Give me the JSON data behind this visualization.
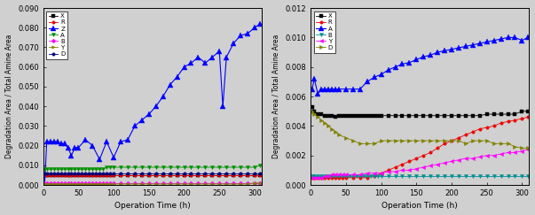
{
  "fig_width": 6.03,
  "fig_height": 2.43,
  "fig_dpi": 100,
  "bg_color": "#d0d0d0",
  "left": {
    "ylabel": "Degradation Area / Total Amine Area",
    "xlabel": "Operation Time (h)",
    "ylim": [
      0,
      0.09
    ],
    "xlim": [
      0,
      310
    ],
    "xticks": [
      0,
      50,
      100,
      150,
      200,
      250,
      300
    ],
    "yticks": [
      0,
      0.01,
      0.02,
      0.03,
      0.04,
      0.05,
      0.06,
      0.07,
      0.08,
      0.09
    ],
    "series": [
      {
        "name": "X",
        "color": "#000000",
        "marker": "s",
        "ms": 2.5,
        "lw": 0.6,
        "x": [
          2,
          5,
          10,
          15,
          20,
          25,
          30,
          35,
          40,
          45,
          50,
          55,
          60,
          65,
          70,
          75,
          80,
          85,
          90,
          95,
          100,
          110,
          120,
          130,
          140,
          150,
          160,
          170,
          180,
          190,
          200,
          210,
          220,
          230,
          240,
          250,
          260,
          270,
          280,
          290,
          300,
          308
        ],
        "y": [
          0.005,
          0.005,
          0.005,
          0.005,
          0.005,
          0.005,
          0.005,
          0.005,
          0.005,
          0.005,
          0.005,
          0.005,
          0.005,
          0.005,
          0.005,
          0.005,
          0.005,
          0.005,
          0.005,
          0.005,
          0.005,
          0.005,
          0.005,
          0.005,
          0.005,
          0.005,
          0.005,
          0.005,
          0.005,
          0.005,
          0.005,
          0.005,
          0.005,
          0.005,
          0.005,
          0.005,
          0.005,
          0.005,
          0.005,
          0.005,
          0.005,
          0.005
        ]
      },
      {
        "name": "R",
        "color": "#ee0000",
        "marker": "o",
        "ms": 2.5,
        "lw": 0.6,
        "x": [
          2,
          5,
          10,
          15,
          20,
          25,
          30,
          35,
          40,
          45,
          50,
          55,
          60,
          65,
          70,
          75,
          80,
          85,
          90,
          95,
          100,
          110,
          120,
          130,
          140,
          150,
          160,
          170,
          180,
          190,
          200,
          210,
          220,
          230,
          240,
          250,
          260,
          270,
          280,
          290,
          300,
          308
        ],
        "y": [
          0.005,
          0.005,
          0.005,
          0.005,
          0.005,
          0.005,
          0.005,
          0.005,
          0.005,
          0.005,
          0.005,
          0.005,
          0.005,
          0.005,
          0.005,
          0.005,
          0.005,
          0.005,
          0.005,
          0.005,
          0.005,
          0.005,
          0.005,
          0.005,
          0.005,
          0.005,
          0.005,
          0.005,
          0.005,
          0.005,
          0.005,
          0.005,
          0.005,
          0.005,
          0.005,
          0.005,
          0.005,
          0.005,
          0.005,
          0.005,
          0.005,
          0.005
        ]
      },
      {
        "name": "Z",
        "color": "#0000ff",
        "marker": "^",
        "ms": 4,
        "lw": 0.8,
        "x": [
          2,
          5,
          10,
          15,
          20,
          25,
          30,
          35,
          40,
          45,
          50,
          60,
          70,
          80,
          90,
          100,
          110,
          120,
          130,
          140,
          150,
          160,
          170,
          180,
          190,
          200,
          210,
          220,
          230,
          240,
          250,
          255,
          260,
          270,
          280,
          290,
          300,
          308
        ],
        "y": [
          0.0,
          0.022,
          0.022,
          0.022,
          0.022,
          0.021,
          0.021,
          0.019,
          0.015,
          0.019,
          0.019,
          0.023,
          0.02,
          0.013,
          0.022,
          0.014,
          0.022,
          0.023,
          0.03,
          0.033,
          0.036,
          0.04,
          0.045,
          0.051,
          0.055,
          0.06,
          0.062,
          0.065,
          0.062,
          0.065,
          0.068,
          0.04,
          0.065,
          0.072,
          0.076,
          0.077,
          0.08,
          0.082
        ]
      },
      {
        "name": "A",
        "color": "#009000",
        "marker": "v",
        "ms": 3,
        "lw": 0.6,
        "x": [
          2,
          5,
          10,
          15,
          20,
          25,
          30,
          35,
          40,
          45,
          50,
          55,
          60,
          65,
          70,
          75,
          80,
          85,
          90,
          95,
          100,
          110,
          120,
          130,
          140,
          150,
          160,
          170,
          180,
          190,
          200,
          210,
          220,
          230,
          240,
          250,
          260,
          270,
          280,
          290,
          300,
          308
        ],
        "y": [
          0.008,
          0.008,
          0.008,
          0.008,
          0.008,
          0.008,
          0.008,
          0.008,
          0.008,
          0.008,
          0.008,
          0.008,
          0.008,
          0.008,
          0.008,
          0.008,
          0.008,
          0.008,
          0.009,
          0.009,
          0.009,
          0.009,
          0.009,
          0.009,
          0.009,
          0.009,
          0.009,
          0.009,
          0.009,
          0.009,
          0.009,
          0.009,
          0.009,
          0.009,
          0.009,
          0.009,
          0.009,
          0.009,
          0.009,
          0.009,
          0.009,
          0.01
        ]
      },
      {
        "name": "B",
        "color": "#ff00ff",
        "marker": "D",
        "ms": 2.5,
        "lw": 0.6,
        "x": [
          2,
          5,
          10,
          15,
          20,
          25,
          30,
          35,
          40,
          45,
          50,
          55,
          60,
          65,
          70,
          75,
          80,
          85,
          90,
          95,
          100,
          110,
          120,
          130,
          140,
          150,
          160,
          170,
          180,
          190,
          200,
          210,
          220,
          230,
          240,
          250,
          260,
          270,
          280,
          290,
          300,
          308
        ],
        "y": [
          0.001,
          0.001,
          0.001,
          0.001,
          0.001,
          0.001,
          0.001,
          0.001,
          0.001,
          0.001,
          0.001,
          0.001,
          0.001,
          0.001,
          0.001,
          0.001,
          0.001,
          0.001,
          0.001,
          0.001,
          0.001,
          0.001,
          0.001,
          0.001,
          0.001,
          0.001,
          0.001,
          0.001,
          0.001,
          0.001,
          0.001,
          0.001,
          0.001,
          0.001,
          0.001,
          0.001,
          0.001,
          0.001,
          0.001,
          0.001,
          0.001,
          0.001
        ]
      },
      {
        "name": "Y",
        "color": "#808000",
        "marker": ">",
        "ms": 2.5,
        "lw": 0.6,
        "x": [
          2,
          5,
          10,
          15,
          20,
          25,
          30,
          35,
          40,
          45,
          50,
          55,
          60,
          65,
          70,
          75,
          80,
          85,
          90,
          95,
          100,
          110,
          120,
          130,
          140,
          150,
          160,
          170,
          180,
          190,
          200,
          210,
          220,
          230,
          240,
          250,
          260,
          270,
          280,
          290,
          300,
          308
        ],
        "y": [
          0.0005,
          0.0005,
          0.0005,
          0.0005,
          0.0005,
          0.0005,
          0.0005,
          0.0005,
          0.0005,
          0.0005,
          0.0005,
          0.0005,
          0.0005,
          0.0005,
          0.0005,
          0.0005,
          0.0005,
          0.0005,
          0.0005,
          0.0005,
          0.0005,
          0.0005,
          0.0005,
          0.0005,
          0.0005,
          0.0005,
          0.0005,
          0.0005,
          0.0005,
          0.0005,
          0.0005,
          0.0005,
          0.0005,
          0.0005,
          0.0005,
          0.0005,
          0.0005,
          0.0005,
          0.0005,
          0.0005,
          0.001,
          0.001
        ]
      },
      {
        "name": "D",
        "color": "#000080",
        "marker": "o",
        "ms": 2.5,
        "lw": 0.6,
        "x": [
          2,
          5,
          10,
          15,
          20,
          25,
          30,
          35,
          40,
          45,
          50,
          55,
          60,
          65,
          70,
          75,
          80,
          85,
          90,
          95,
          100,
          110,
          120,
          130,
          140,
          150,
          160,
          170,
          180,
          190,
          200,
          210,
          220,
          230,
          240,
          250,
          260,
          270,
          280,
          290,
          300,
          308
        ],
        "y": [
          0.006,
          0.006,
          0.006,
          0.006,
          0.006,
          0.006,
          0.006,
          0.006,
          0.006,
          0.006,
          0.006,
          0.006,
          0.006,
          0.006,
          0.006,
          0.006,
          0.006,
          0.006,
          0.006,
          0.006,
          0.006,
          0.006,
          0.006,
          0.006,
          0.006,
          0.006,
          0.006,
          0.006,
          0.006,
          0.006,
          0.006,
          0.006,
          0.006,
          0.006,
          0.006,
          0.006,
          0.006,
          0.006,
          0.006,
          0.006,
          0.006,
          0.006
        ]
      }
    ]
  },
  "right": {
    "ylabel": "Degradation Area / Total Amine Area",
    "xlabel": "Operation Time (h)",
    "ylim": [
      0,
      0.012
    ],
    "xlim": [
      0,
      310
    ],
    "xticks": [
      0,
      50,
      100,
      150,
      200,
      250,
      300
    ],
    "yticks": [
      0,
      0.002,
      0.004,
      0.006,
      0.008,
      0.01,
      0.012
    ],
    "series": [
      {
        "name": "X",
        "color": "#000000",
        "marker": "s",
        "ms": 2.5,
        "lw": 0.6,
        "x": [
          2,
          5,
          10,
          15,
          20,
          25,
          30,
          35,
          40,
          45,
          50,
          55,
          60,
          65,
          70,
          75,
          80,
          85,
          90,
          95,
          100,
          110,
          120,
          130,
          140,
          150,
          160,
          170,
          180,
          190,
          200,
          210,
          220,
          230,
          240,
          250,
          260,
          270,
          280,
          290,
          300,
          308
        ],
        "y": [
          0.0053,
          0.005,
          0.0048,
          0.0048,
          0.0047,
          0.0047,
          0.0047,
          0.0046,
          0.0047,
          0.0047,
          0.0047,
          0.0047,
          0.0047,
          0.0047,
          0.0047,
          0.0047,
          0.0047,
          0.0047,
          0.0047,
          0.0047,
          0.0047,
          0.0047,
          0.0047,
          0.0047,
          0.0047,
          0.0047,
          0.0047,
          0.0047,
          0.0047,
          0.0047,
          0.0047,
          0.0047,
          0.0047,
          0.0047,
          0.0047,
          0.0048,
          0.0048,
          0.0048,
          0.0048,
          0.0048,
          0.005,
          0.005
        ]
      },
      {
        "name": "R",
        "color": "#ee0000",
        "marker": "o",
        "ms": 2.5,
        "lw": 0.6,
        "x": [
          2,
          5,
          10,
          15,
          20,
          25,
          30,
          35,
          40,
          45,
          50,
          60,
          70,
          80,
          90,
          100,
          110,
          120,
          130,
          140,
          150,
          160,
          170,
          180,
          190,
          200,
          210,
          220,
          230,
          240,
          250,
          260,
          270,
          280,
          290,
          300,
          308
        ],
        "y": [
          0.0005,
          0.0005,
          0.0005,
          0.0005,
          0.0005,
          0.0005,
          0.0005,
          0.0005,
          0.0005,
          0.0005,
          0.0005,
          0.0005,
          0.0005,
          0.0005,
          0.0006,
          0.0008,
          0.001,
          0.0012,
          0.0014,
          0.0016,
          0.0018,
          0.002,
          0.0022,
          0.0025,
          0.0028,
          0.003,
          0.0032,
          0.0034,
          0.0036,
          0.0038,
          0.0039,
          0.004,
          0.0042,
          0.0043,
          0.0044,
          0.0045,
          0.0046
        ]
      },
      {
        "name": "A",
        "color": "#0000ff",
        "marker": "^",
        "ms": 4,
        "lw": 0.8,
        "x": [
          2,
          5,
          10,
          15,
          20,
          25,
          30,
          35,
          40,
          50,
          60,
          70,
          80,
          90,
          100,
          110,
          120,
          130,
          140,
          150,
          160,
          170,
          180,
          190,
          200,
          210,
          220,
          230,
          240,
          250,
          260,
          270,
          280,
          290,
          300,
          308
        ],
        "y": [
          0.0065,
          0.0072,
          0.0062,
          0.0065,
          0.0065,
          0.0065,
          0.0065,
          0.0065,
          0.0065,
          0.0065,
          0.0065,
          0.0065,
          0.007,
          0.0073,
          0.0075,
          0.0078,
          0.008,
          0.0082,
          0.0083,
          0.0085,
          0.0087,
          0.0088,
          0.009,
          0.0091,
          0.0092,
          0.0093,
          0.0094,
          0.0095,
          0.0096,
          0.0097,
          0.0098,
          0.0099,
          0.01,
          0.01,
          0.0098,
          0.01
        ]
      },
      {
        "name": "B",
        "color": "#009090",
        "marker": "v",
        "ms": 3,
        "lw": 0.6,
        "x": [
          2,
          5,
          10,
          15,
          20,
          25,
          30,
          35,
          40,
          45,
          50,
          55,
          60,
          65,
          70,
          75,
          80,
          85,
          90,
          95,
          100,
          110,
          120,
          130,
          140,
          150,
          160,
          170,
          180,
          190,
          200,
          210,
          220,
          230,
          240,
          250,
          260,
          270,
          280,
          290,
          300,
          308
        ],
        "y": [
          0.0006,
          0.0006,
          0.0006,
          0.0006,
          0.0006,
          0.0006,
          0.0006,
          0.0006,
          0.0006,
          0.0006,
          0.0006,
          0.0006,
          0.0006,
          0.0006,
          0.0006,
          0.0006,
          0.0006,
          0.0006,
          0.0006,
          0.0006,
          0.0006,
          0.0006,
          0.0006,
          0.0006,
          0.0006,
          0.0006,
          0.0006,
          0.0006,
          0.0006,
          0.0006,
          0.0006,
          0.0006,
          0.0006,
          0.0006,
          0.0006,
          0.0006,
          0.0006,
          0.0006,
          0.0006,
          0.0006,
          0.0006,
          0.0006
        ]
      },
      {
        "name": "Y",
        "color": "#ff00ff",
        "marker": "<",
        "ms": 3,
        "lw": 0.6,
        "x": [
          2,
          5,
          10,
          15,
          20,
          25,
          30,
          35,
          40,
          45,
          50,
          60,
          70,
          80,
          90,
          100,
          110,
          120,
          130,
          140,
          150,
          160,
          170,
          180,
          190,
          200,
          210,
          220,
          230,
          240,
          250,
          260,
          270,
          280,
          290,
          300,
          308
        ],
        "y": [
          0.0005,
          0.0005,
          0.0005,
          0.0005,
          0.0006,
          0.0006,
          0.0007,
          0.0007,
          0.0007,
          0.0007,
          0.0007,
          0.0007,
          0.0007,
          0.0008,
          0.0008,
          0.0008,
          0.0009,
          0.0009,
          0.001,
          0.001,
          0.0011,
          0.0012,
          0.0013,
          0.0014,
          0.0015,
          0.0016,
          0.0017,
          0.0018,
          0.0018,
          0.0019,
          0.002,
          0.002,
          0.0021,
          0.0022,
          0.0022,
          0.0023,
          0.0024
        ]
      },
      {
        "name": "D",
        "color": "#808000",
        "marker": ">",
        "ms": 3,
        "lw": 0.6,
        "x": [
          2,
          5,
          10,
          15,
          20,
          25,
          30,
          35,
          40,
          50,
          60,
          70,
          80,
          90,
          100,
          110,
          120,
          130,
          140,
          150,
          160,
          170,
          180,
          190,
          200,
          210,
          220,
          230,
          240,
          250,
          260,
          270,
          280,
          290,
          300,
          308
        ],
        "y": [
          0.005,
          0.0048,
          0.0046,
          0.0044,
          0.0042,
          0.004,
          0.0038,
          0.0036,
          0.0034,
          0.0032,
          0.003,
          0.0028,
          0.0028,
          0.0028,
          0.003,
          0.003,
          0.003,
          0.003,
          0.003,
          0.003,
          0.003,
          0.003,
          0.003,
          0.003,
          0.003,
          0.003,
          0.0028,
          0.003,
          0.003,
          0.003,
          0.0028,
          0.0028,
          0.0028,
          0.0026,
          0.0025,
          0.0025
        ]
      }
    ]
  }
}
